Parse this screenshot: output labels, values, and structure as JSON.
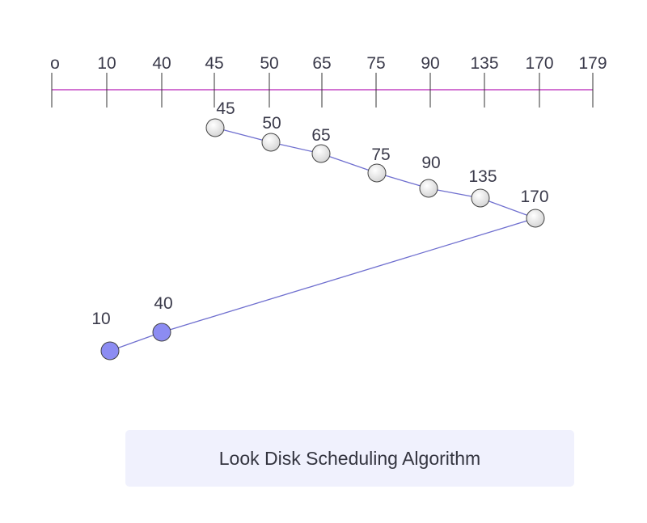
{
  "title": "Look Disk Scheduling Algorithm",
  "axis": {
    "ticks": [
      "o",
      "10",
      "40",
      "45",
      "50",
      "65",
      "75",
      "90",
      "135",
      "170",
      "179"
    ],
    "line_color": "#c447c4"
  },
  "path": {
    "sequence": [
      "45",
      "50",
      "65",
      "75",
      "90",
      "135",
      "170",
      "40",
      "10"
    ],
    "line_color": "#6f6fcf"
  },
  "colors": {
    "node_default": "#ececec",
    "node_highlight": "#8c8cf2",
    "text": "#3a3a4a",
    "caption_bg": "#f0f1fd"
  }
}
